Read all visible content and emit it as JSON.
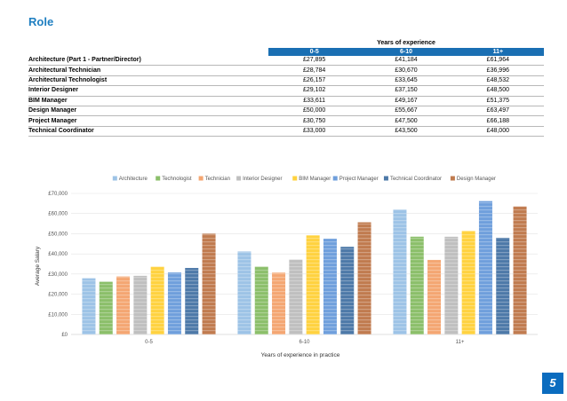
{
  "page": {
    "title": "Role",
    "page_number": "5"
  },
  "table": {
    "group_header": "Years of experience",
    "columns": [
      "0-5",
      "6-10",
      "11+"
    ],
    "rows": [
      {
        "role": "Architecture (Part 1 - Partner/Director)",
        "values": [
          "£27,895",
          "£41,184",
          "£61,964"
        ]
      },
      {
        "role": "Architectural Technician",
        "values": [
          "£28,784",
          "£30,670",
          "£36,996"
        ]
      },
      {
        "role": "Architectural Technologist",
        "values": [
          "£26,157",
          "£33,645",
          "£48,532"
        ]
      },
      {
        "role": "Interior Designer",
        "values": [
          "£29,102",
          "£37,150",
          "£48,500"
        ]
      },
      {
        "role": "BIM Manager",
        "values": [
          "£33,611",
          "£49,167",
          "£51,375"
        ]
      },
      {
        "role": "Design Manager",
        "values": [
          "£50,000",
          "£55,667",
          "£63,497"
        ]
      },
      {
        "role": "Project Manager",
        "values": [
          "£30,750",
          "£47,500",
          "£66,188"
        ]
      },
      {
        "role": "Technical Coordinator",
        "values": [
          "£33,000",
          "£43,500",
          "£48,000"
        ]
      }
    ]
  },
  "chart_data": {
    "type": "bar",
    "title": "",
    "xlabel": "Years of experience in practice",
    "ylabel": "Average Salary",
    "categories": [
      "0-5",
      "6-10",
      "11+"
    ],
    "ylim": [
      0,
      70000
    ],
    "yticks": [
      0,
      10000,
      20000,
      30000,
      40000,
      50000,
      60000,
      70000
    ],
    "ytick_labels": [
      "£0",
      "£10,000",
      "£20,000",
      "£30,000",
      "£40,000",
      "£50,000",
      "£60,000",
      "£70,000"
    ],
    "legend_position": "top",
    "series": [
      {
        "name": "Architecture",
        "color": "#9dc3e6",
        "values": [
          27895,
          41184,
          61964
        ]
      },
      {
        "name": "Technologist",
        "color": "#8bbf6a",
        "values": [
          26157,
          33645,
          48532
        ]
      },
      {
        "name": "Technician",
        "color": "#f4a672",
        "values": [
          28784,
          30670,
          36996
        ]
      },
      {
        "name": "Interior Designer",
        "color": "#bfbfbf",
        "values": [
          29102,
          37150,
          48500
        ]
      },
      {
        "name": "BIM Manager",
        "color": "#ffd23f",
        "values": [
          33611,
          49167,
          51375
        ]
      },
      {
        "name": "Project Manager",
        "color": "#6f9fdc",
        "values": [
          30750,
          47500,
          66188
        ]
      },
      {
        "name": "Technical Coordinator",
        "color": "#4d79a8",
        "values": [
          33000,
          43500,
          48000
        ]
      },
      {
        "name": "Design Manager",
        "color": "#c07b4f",
        "values": [
          50000,
          55667,
          63497
        ]
      }
    ]
  }
}
